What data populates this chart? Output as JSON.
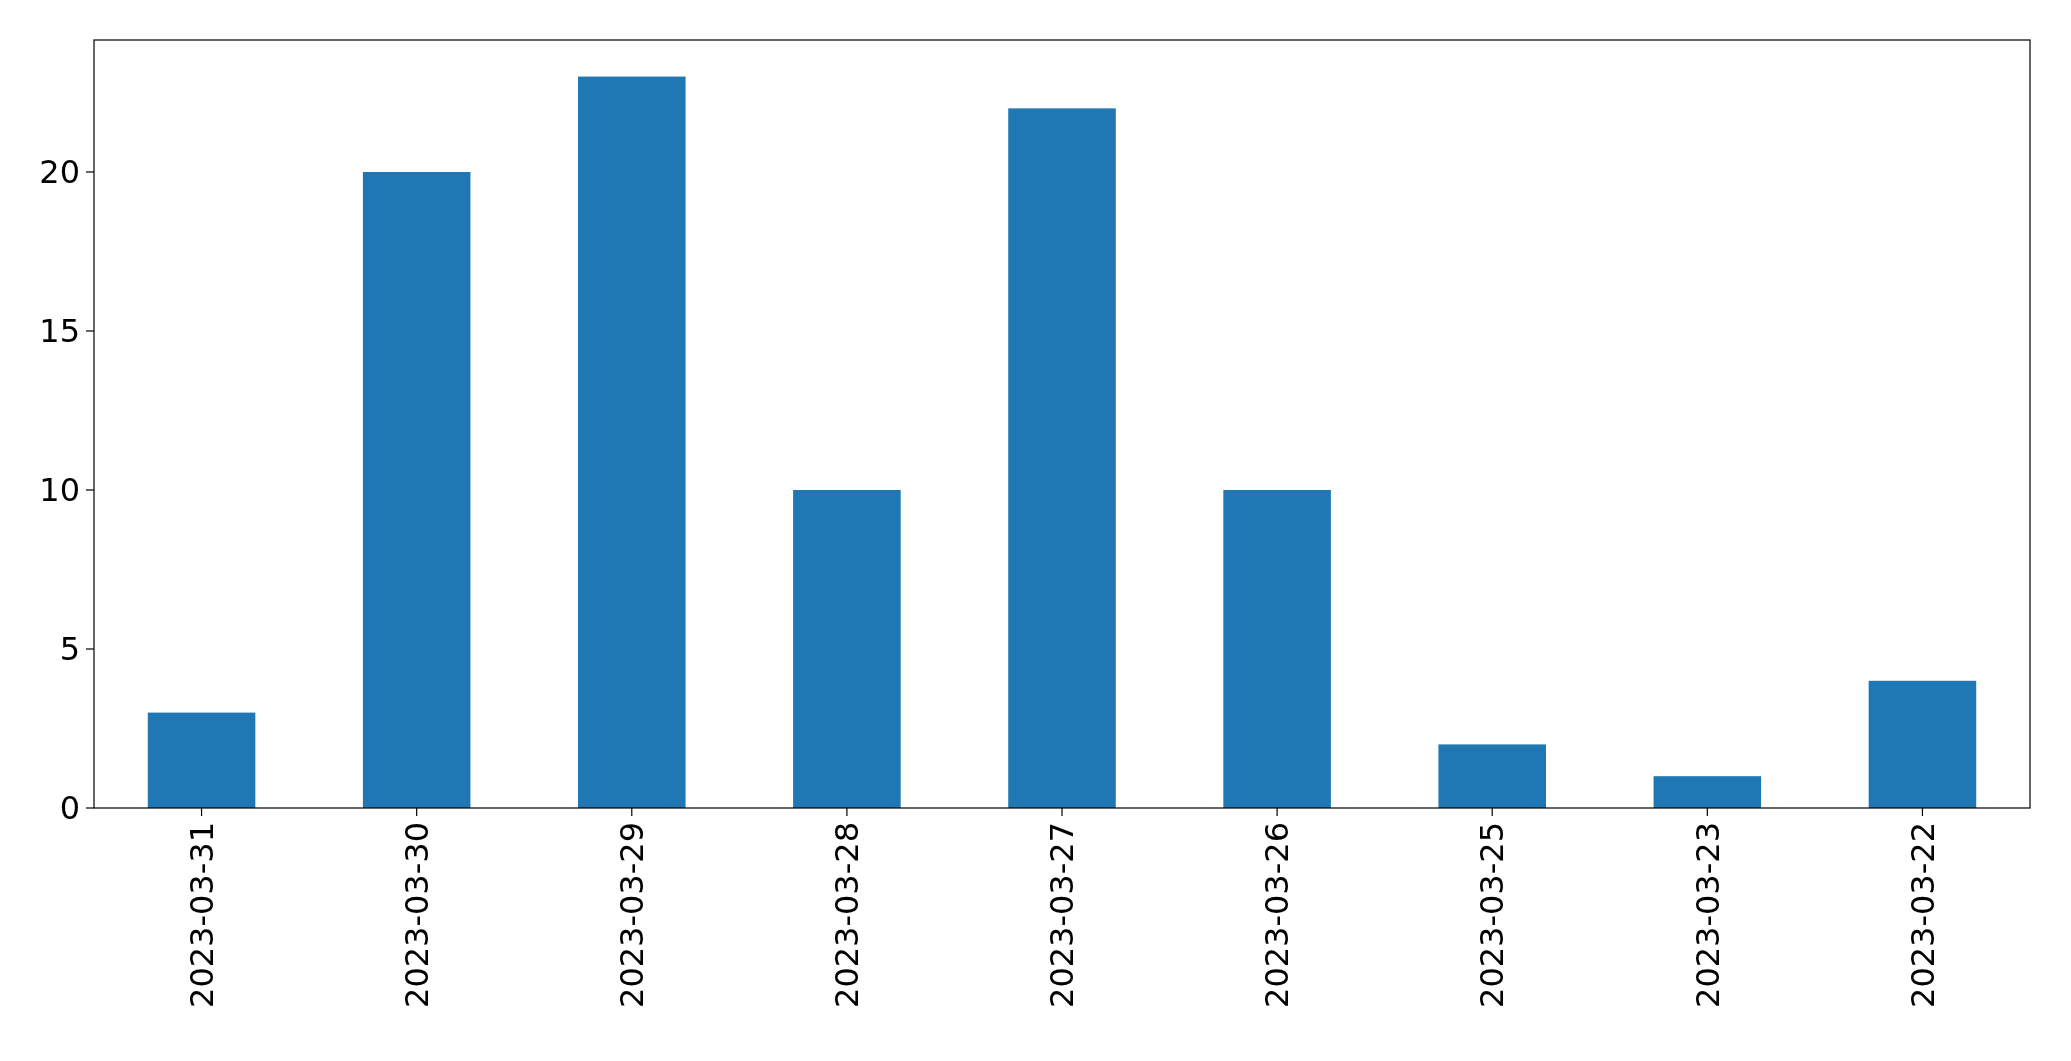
{
  "chart_data": {
    "type": "bar",
    "categories": [
      "2023-03-31",
      "2023-03-30",
      "2023-03-29",
      "2023-03-28",
      "2023-03-27",
      "2023-03-26",
      "2023-03-25",
      "2023-03-23",
      "2023-03-22"
    ],
    "values": [
      3,
      20,
      23,
      10,
      22,
      10,
      2,
      1,
      4
    ],
    "color": "#1f77b4",
    "ylim": [
      0,
      24.15
    ],
    "yticks": [
      0,
      5,
      10,
      15,
      20
    ]
  }
}
